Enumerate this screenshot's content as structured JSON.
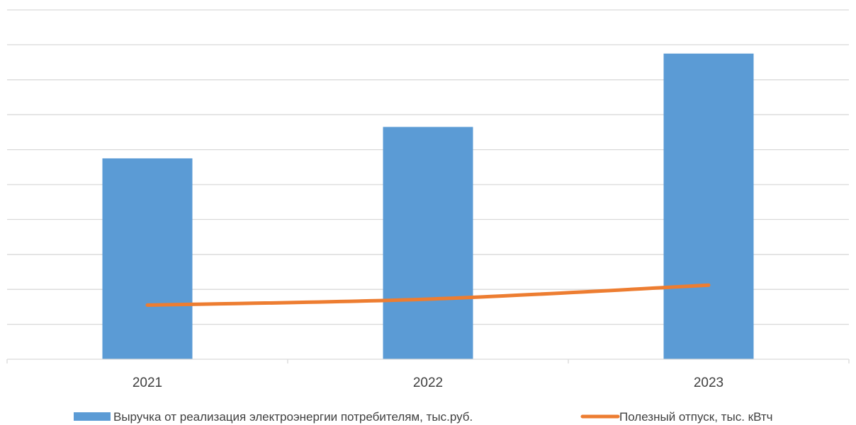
{
  "chart_data": {
    "type": "bar",
    "title": "",
    "xlabel": "",
    "ylabel": "",
    "categories": [
      "2021",
      "2022",
      "2023"
    ],
    "ylim": [
      0,
      10
    ],
    "grid": true,
    "legend_position": "bottom",
    "series": [
      {
        "name": "Выручка от реализация электроэнергии потребителям, тыс.руб.",
        "type": "bar",
        "color": "#5B9BD5",
        "values": [
          5.75,
          6.65,
          8.75
        ]
      },
      {
        "name": "Полезный отпуск, тыс. кВтч",
        "type": "line",
        "color": "#ED7D31",
        "values": [
          1.55,
          1.72,
          2.12
        ]
      }
    ]
  }
}
